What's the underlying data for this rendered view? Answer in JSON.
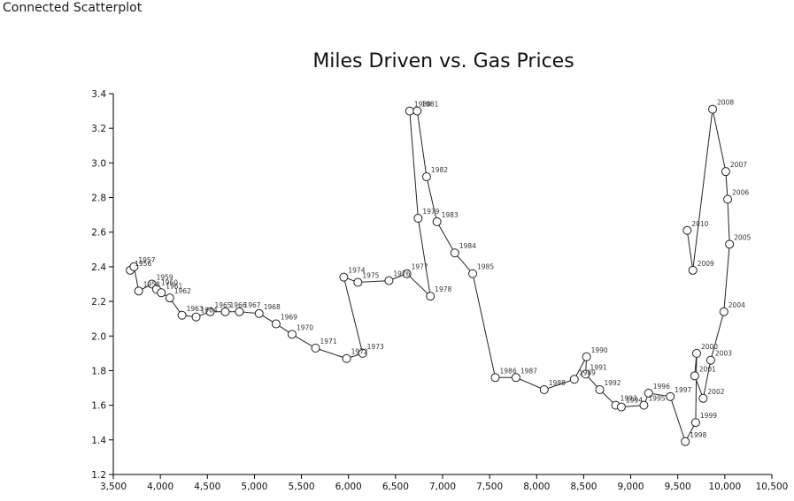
{
  "page": {
    "heading": "Connected Scatterplot"
  },
  "chart_data": {
    "type": "scatter",
    "connected": true,
    "title": "Miles Driven vs. Gas Prices",
    "xlabel": "",
    "ylabel": "",
    "xlim": [
      3500,
      10500
    ],
    "ylim": [
      1.2,
      3.4
    ],
    "x_ticks": [
      3500,
      4000,
      4500,
      5000,
      5500,
      6000,
      6500,
      7000,
      7500,
      8000,
      8500,
      9000,
      9500,
      10000,
      10500
    ],
    "x_tick_labels": [
      "3,500",
      "4,000",
      "4,500",
      "5,000",
      "5,500",
      "6,000",
      "6,500",
      "7,000",
      "7,500",
      "8,000",
      "8,500",
      "9,000",
      "9,500",
      "10,000",
      "10,500"
    ],
    "y_ticks": [
      1.2,
      1.4,
      1.6,
      1.8,
      2.0,
      2.2,
      2.4,
      2.6,
      2.8,
      3.0,
      3.2,
      3.4
    ],
    "y_tick_labels": [
      "1.2",
      "1.4",
      "1.6",
      "1.8",
      "2.0",
      "2.2",
      "2.4",
      "2.6",
      "2.8",
      "3.0",
      "3.2",
      "3.4"
    ],
    "grid": false,
    "legend": "none",
    "points": [
      {
        "label": "1956",
        "x": 3680,
        "y": 2.38
      },
      {
        "label": "1957",
        "x": 3720,
        "y": 2.4
      },
      {
        "label": "1958",
        "x": 3770,
        "y": 2.26
      },
      {
        "label": "1959",
        "x": 3910,
        "y": 2.3
      },
      {
        "label": "1960",
        "x": 3960,
        "y": 2.27
      },
      {
        "label": "1961",
        "x": 4010,
        "y": 2.25
      },
      {
        "label": "1962",
        "x": 4100,
        "y": 2.22
      },
      {
        "label": "1963",
        "x": 4230,
        "y": 2.12
      },
      {
        "label": "1964",
        "x": 4380,
        "y": 2.11
      },
      {
        "label": "1965",
        "x": 4530,
        "y": 2.14
      },
      {
        "label": "1966",
        "x": 4690,
        "y": 2.14
      },
      {
        "label": "1967",
        "x": 4840,
        "y": 2.14
      },
      {
        "label": "1968",
        "x": 5050,
        "y": 2.13
      },
      {
        "label": "1969",
        "x": 5230,
        "y": 2.07
      },
      {
        "label": "1970",
        "x": 5400,
        "y": 2.01
      },
      {
        "label": "1971",
        "x": 5650,
        "y": 1.93
      },
      {
        "label": "1972",
        "x": 5980,
        "y": 1.87
      },
      {
        "label": "1973",
        "x": 6150,
        "y": 1.9
      },
      {
        "label": "1974",
        "x": 5950,
        "y": 2.34
      },
      {
        "label": "1975",
        "x": 6100,
        "y": 2.31
      },
      {
        "label": "1976",
        "x": 6430,
        "y": 2.32
      },
      {
        "label": "1977",
        "x": 6620,
        "y": 2.36
      },
      {
        "label": "1978",
        "x": 6870,
        "y": 2.23
      },
      {
        "label": "1979",
        "x": 6740,
        "y": 2.68
      },
      {
        "label": "1980",
        "x": 6650,
        "y": 3.3
      },
      {
        "label": "1981",
        "x": 6730,
        "y": 3.3
      },
      {
        "label": "1982",
        "x": 6830,
        "y": 2.92
      },
      {
        "label": "1983",
        "x": 6940,
        "y": 2.66
      },
      {
        "label": "1984",
        "x": 7130,
        "y": 2.48
      },
      {
        "label": "1985",
        "x": 7320,
        "y": 2.36
      },
      {
        "label": "1986",
        "x": 7560,
        "y": 1.76
      },
      {
        "label": "1987",
        "x": 7780,
        "y": 1.76
      },
      {
        "label": "1988",
        "x": 8080,
        "y": 1.69
      },
      {
        "label": "1989",
        "x": 8400,
        "y": 1.75
      },
      {
        "label": "1990",
        "x": 8530,
        "y": 1.88
      },
      {
        "label": "1991",
        "x": 8520,
        "y": 1.78
      },
      {
        "label": "1992",
        "x": 8670,
        "y": 1.69
      },
      {
        "label": "1993",
        "x": 8840,
        "y": 1.6
      },
      {
        "label": "1994",
        "x": 8900,
        "y": 1.59
      },
      {
        "label": "1995",
        "x": 9140,
        "y": 1.6
      },
      {
        "label": "1996",
        "x": 9190,
        "y": 1.67
      },
      {
        "label": "1997",
        "x": 9420,
        "y": 1.65
      },
      {
        "label": "1998",
        "x": 9580,
        "y": 1.39
      },
      {
        "label": "1999",
        "x": 9690,
        "y": 1.5
      },
      {
        "label": "2000",
        "x": 9700,
        "y": 1.9
      },
      {
        "label": "2001",
        "x": 9680,
        "y": 1.77
      },
      {
        "label": "2002",
        "x": 9770,
        "y": 1.64
      },
      {
        "label": "2003",
        "x": 9850,
        "y": 1.86
      },
      {
        "label": "2004",
        "x": 9990,
        "y": 2.14
      },
      {
        "label": "2005",
        "x": 10050,
        "y": 2.53
      },
      {
        "label": "2006",
        "x": 10030,
        "y": 2.79
      },
      {
        "label": "2007",
        "x": 10010,
        "y": 2.95
      },
      {
        "label": "2008",
        "x": 9870,
        "y": 3.31
      },
      {
        "label": "2009",
        "x": 9660,
        "y": 2.38
      },
      {
        "label": "2010",
        "x": 9600,
        "y": 2.61
      }
    ]
  }
}
